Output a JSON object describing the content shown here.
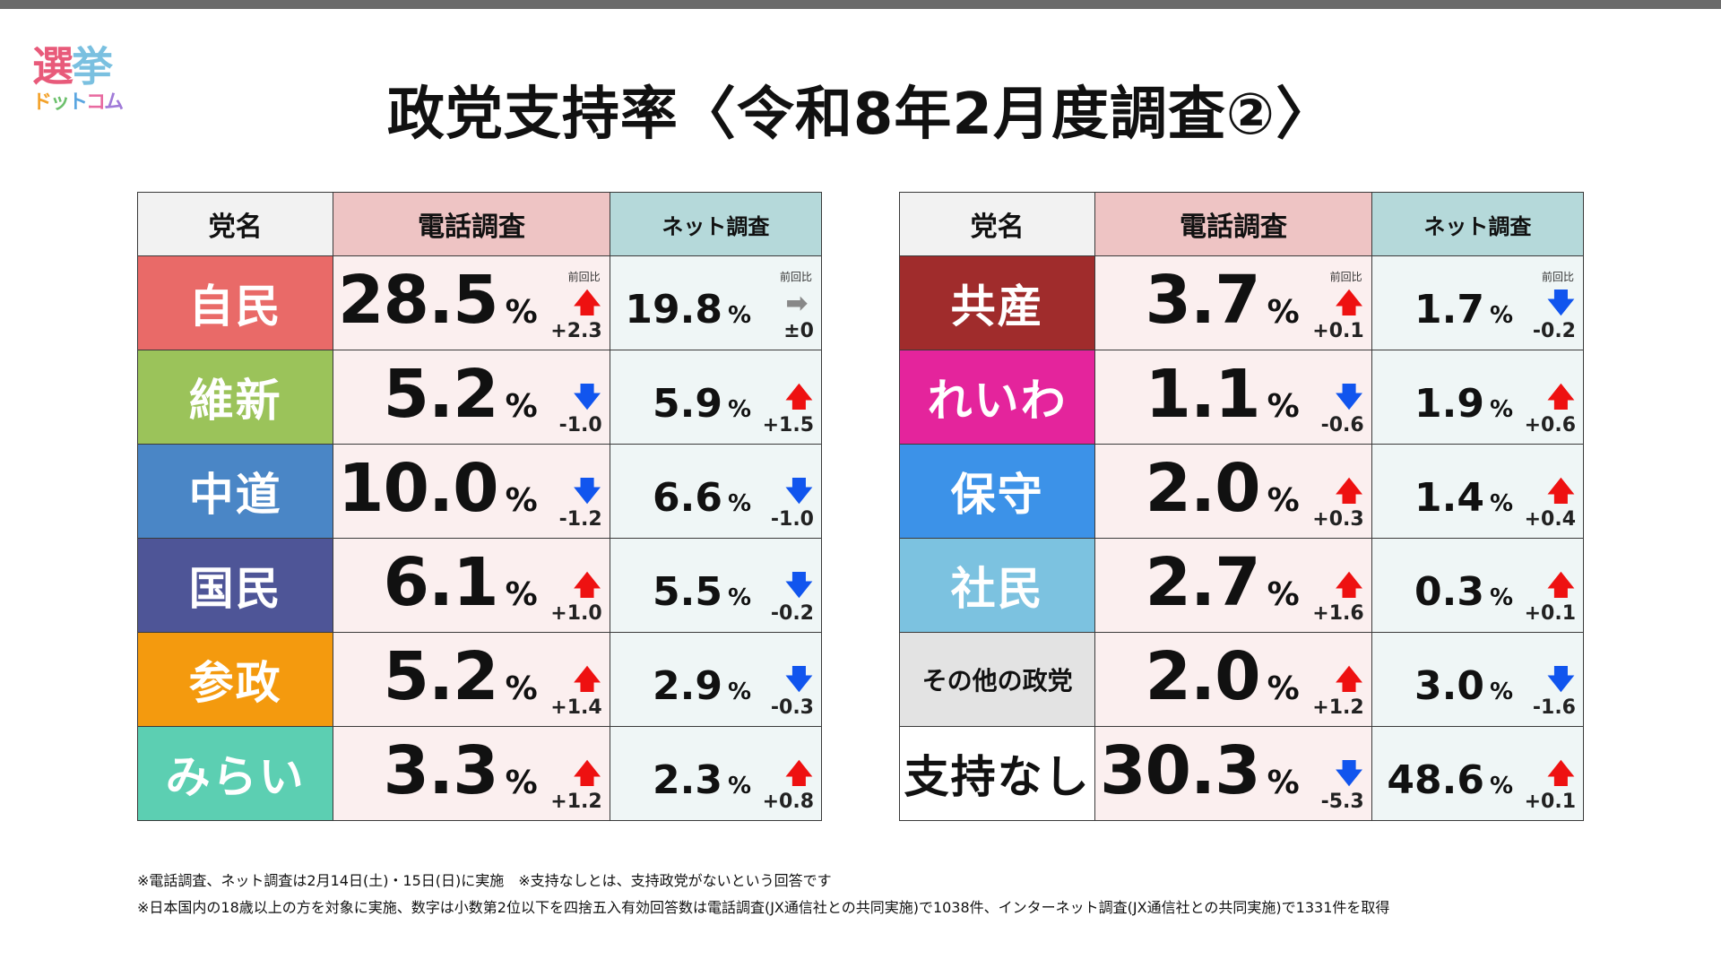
{
  "logo": {
    "main": [
      "選",
      "挙"
    ],
    "main_colors": [
      "#e85a7a",
      "#7ac0e0"
    ],
    "sub": [
      "ド",
      "ッ",
      "ト",
      "コ",
      "ム"
    ],
    "sub_colors": [
      "#f3a22b",
      "#6cc06c",
      "#5aa6e0",
      "#e86aa0",
      "#a07ad8"
    ]
  },
  "title": "政党支持率〈令和8年2月度調査②〉",
  "table_headers": {
    "party": "党名",
    "phone": "電話調査",
    "net": "ネット調査"
  },
  "prev_label": "前回比",
  "percent_sign": "%",
  "tables": [
    {
      "rows": [
        {
          "party": "自民",
          "color": "#e96a68",
          "phone": "28.5",
          "phone_change": "+2.3",
          "phone_trend": "up",
          "net": "19.8",
          "net_change": "±0",
          "net_trend": "flat"
        },
        {
          "party": "維新",
          "color": "#9bc35a",
          "phone": "5.2",
          "phone_change": "-1.0",
          "phone_trend": "down",
          "net": "5.9",
          "net_change": "+1.5",
          "net_trend": "up"
        },
        {
          "party": "中道",
          "color": "#4a86c6",
          "phone": "10.0",
          "phone_change": "-1.2",
          "phone_trend": "down",
          "net": "6.6",
          "net_change": "-1.0",
          "net_trend": "down"
        },
        {
          "party": "国民",
          "color": "#4e5597",
          "phone": "6.1",
          "phone_change": "+1.0",
          "phone_trend": "up",
          "net": "5.5",
          "net_change": "-0.2",
          "net_trend": "down"
        },
        {
          "party": "参政",
          "color": "#f49a0e",
          "phone": "5.2",
          "phone_change": "+1.4",
          "phone_trend": "up",
          "net": "2.9",
          "net_change": "-0.3",
          "net_trend": "down"
        },
        {
          "party": "みらい",
          "color": "#5ccfb2",
          "phone": "3.3",
          "phone_change": "+1.2",
          "phone_trend": "up",
          "net": "2.3",
          "net_change": "+0.8",
          "net_trend": "up"
        }
      ]
    },
    {
      "rows": [
        {
          "party": "共産",
          "color": "#a02c2c",
          "phone": "3.7",
          "phone_change": "+0.1",
          "phone_trend": "up",
          "net": "1.7",
          "net_change": "-0.2",
          "net_trend": "down"
        },
        {
          "party": "れいわ",
          "color": "#e4249c",
          "phone": "1.1",
          "phone_change": "-0.6",
          "phone_trend": "down",
          "net": "1.9",
          "net_change": "+0.6",
          "net_trend": "up"
        },
        {
          "party": "保守",
          "color": "#3c92e8",
          "phone": "2.0",
          "phone_change": "+0.3",
          "phone_trend": "up",
          "net": "1.4",
          "net_change": "+0.4",
          "net_trend": "up"
        },
        {
          "party": "社民",
          "color": "#7cc2e0",
          "phone": "2.7",
          "phone_change": "+1.6",
          "phone_trend": "up",
          "net": "0.3",
          "net_change": "+0.1",
          "net_trend": "up"
        },
        {
          "party": "その他の政党",
          "color": "#e3e3e3",
          "text_color": "#111111",
          "small": true,
          "phone": "2.0",
          "phone_change": "+1.2",
          "phone_trend": "up",
          "net": "3.0",
          "net_change": "-1.6",
          "net_trend": "down"
        },
        {
          "party": "支持なし",
          "color": "#ffffff",
          "text_color": "#111111",
          "phone": "30.3",
          "phone_change": "-5.3",
          "phone_trend": "down",
          "net": "48.6",
          "net_change": "+0.1",
          "net_trend": "up"
        }
      ]
    }
  ],
  "notes": [
    "※電話調査、ネット調査は2月14日(土)・15日(日)に実施　※支持なしとは、支持政党がないという回答です",
    "※日本国内の18歳以上の方を対象に実施、数字は小数第2位以下を四捨五入有効回答数は電話調査(JX通信社との共同実施)で1038件、インターネット調査(JX通信社との共同実施)で1331件を取得"
  ]
}
